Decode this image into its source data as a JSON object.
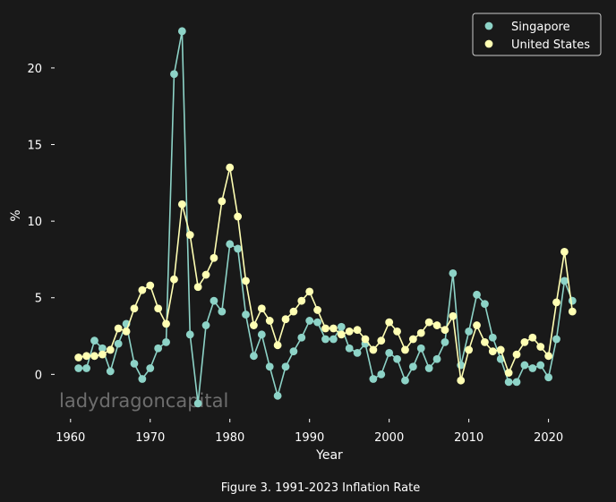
{
  "figure_caption": "Figure 3. 1991-2023 Inflation Rate",
  "watermark": "ladydragoncapital",
  "chart_data": {
    "type": "line",
    "title": "",
    "xlabel": "Year",
    "ylabel": "%",
    "xlim": [
      1958,
      2026
    ],
    "ylim": [
      -2.9,
      23.5
    ],
    "xticks": [
      1960,
      1970,
      1980,
      1990,
      2000,
      2010,
      2020
    ],
    "yticks": [
      0,
      5,
      10,
      15,
      20
    ],
    "grid": false,
    "legend_position": "top-right",
    "background": "#191919",
    "series": [
      {
        "name": "Singapore",
        "color": "#8dd3c7",
        "x": [
          1961,
          1962,
          1963,
          1964,
          1965,
          1966,
          1967,
          1968,
          1969,
          1970,
          1971,
          1972,
          1973,
          1974,
          1975,
          1976,
          1977,
          1978,
          1979,
          1980,
          1981,
          1982,
          1983,
          1984,
          1985,
          1986,
          1987,
          1988,
          1989,
          1990,
          1991,
          1992,
          1993,
          1994,
          1995,
          1996,
          1997,
          1998,
          1999,
          2000,
          2001,
          2002,
          2003,
          2004,
          2005,
          2006,
          2007,
          2008,
          2009,
          2010,
          2011,
          2012,
          2013,
          2014,
          2015,
          2016,
          2017,
          2018,
          2019,
          2020,
          2021,
          2022,
          2023
        ],
        "values": [
          0.4,
          0.4,
          2.2,
          1.7,
          0.2,
          2.0,
          3.3,
          0.7,
          -0.3,
          0.4,
          1.7,
          2.1,
          19.6,
          22.4,
          2.6,
          -1.9,
          3.2,
          4.8,
          4.1,
          8.5,
          8.2,
          3.9,
          1.2,
          2.6,
          0.5,
          -1.4,
          0.5,
          1.5,
          2.4,
          3.5,
          3.4,
          2.3,
          2.3,
          3.1,
          1.7,
          1.4,
          2.0,
          -0.3,
          0.0,
          1.4,
          1.0,
          -0.4,
          0.5,
          1.7,
          0.4,
          1.0,
          2.1,
          6.6,
          0.6,
          2.8,
          5.2,
          4.6,
          2.4,
          1.0,
          -0.5,
          -0.5,
          0.6,
          0.4,
          0.6,
          -0.2,
          2.3,
          6.1,
          4.8
        ]
      },
      {
        "name": "United States",
        "color": "#ffffb3",
        "x": [
          1961,
          1962,
          1963,
          1964,
          1965,
          1966,
          1967,
          1968,
          1969,
          1970,
          1971,
          1972,
          1973,
          1974,
          1975,
          1976,
          1977,
          1978,
          1979,
          1980,
          1981,
          1982,
          1983,
          1984,
          1985,
          1986,
          1987,
          1988,
          1989,
          1990,
          1991,
          1992,
          1993,
          1994,
          1995,
          1996,
          1997,
          1998,
          1999,
          2000,
          2001,
          2002,
          2003,
          2004,
          2005,
          2006,
          2007,
          2008,
          2009,
          2010,
          2011,
          2012,
          2013,
          2014,
          2015,
          2016,
          2017,
          2018,
          2019,
          2020,
          2021,
          2022,
          2023
        ],
        "values": [
          1.1,
          1.2,
          1.2,
          1.3,
          1.6,
          3.0,
          2.8,
          4.3,
          5.5,
          5.8,
          4.3,
          3.3,
          6.2,
          11.1,
          9.1,
          5.7,
          6.5,
          7.6,
          11.3,
          13.5,
          10.3,
          6.1,
          3.2,
          4.3,
          3.5,
          1.9,
          3.6,
          4.1,
          4.8,
          5.4,
          4.2,
          3.0,
          3.0,
          2.6,
          2.8,
          2.9,
          2.3,
          1.6,
          2.2,
          3.4,
          2.8,
          1.6,
          2.3,
          2.7,
          3.4,
          3.2,
          2.9,
          3.8,
          -0.4,
          1.6,
          3.2,
          2.1,
          1.5,
          1.6,
          0.1,
          1.3,
          2.1,
          2.4,
          1.8,
          1.2,
          4.7,
          8.0,
          4.1
        ]
      }
    ]
  }
}
